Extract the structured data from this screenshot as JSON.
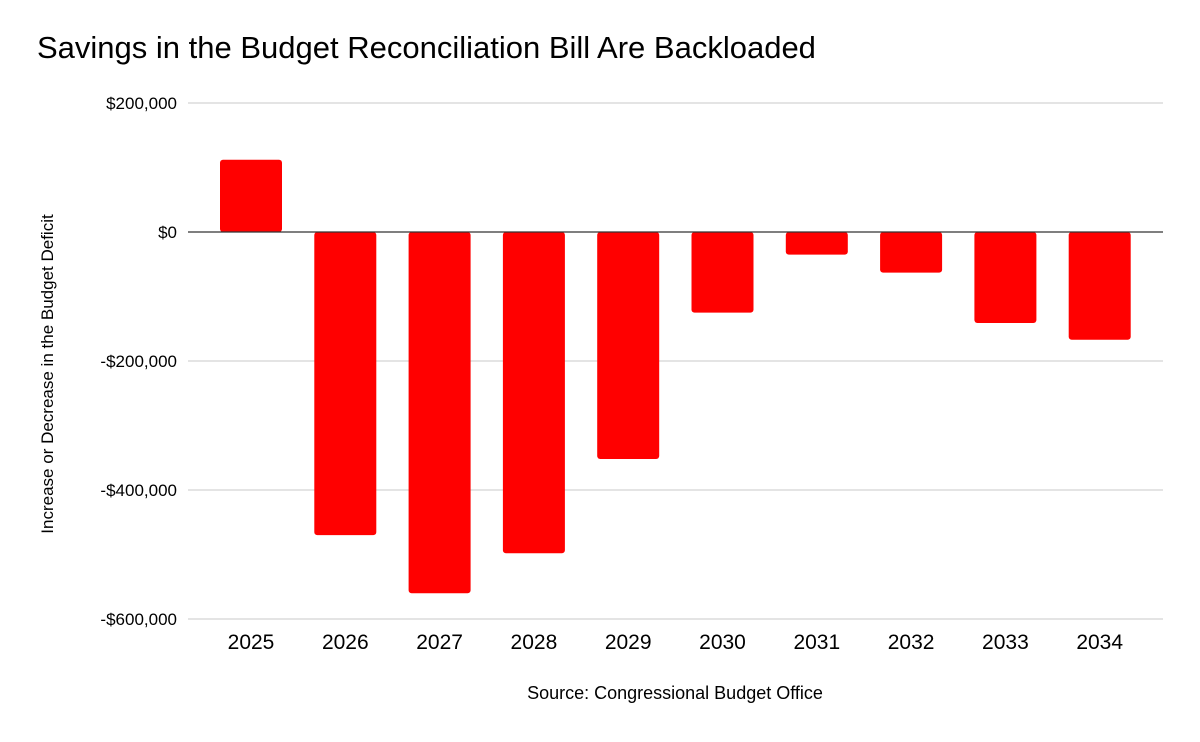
{
  "chart_data": {
    "type": "bar",
    "title": "Savings in the Budget Reconciliation Bill Are Backloaded",
    "ylabel": "Increase or Decrease in the Budget Deficit",
    "xlabel": "Source: Congressional Budget Office",
    "categories": [
      "2025",
      "2026",
      "2027",
      "2028",
      "2029",
      "2030",
      "2031",
      "2032",
      "2033",
      "2034"
    ],
    "values": [
      112000,
      -470000,
      -560000,
      -498000,
      -352000,
      -125000,
      -35000,
      -63000,
      -141000,
      -167000
    ],
    "ylim": [
      -600000,
      200000
    ],
    "yticks": [
      200000,
      0,
      -200000,
      -400000,
      -600000
    ],
    "ytick_labels": [
      "$200,000",
      "$0",
      "-$200,000",
      "-$400,000",
      "-$600,000"
    ],
    "grid": true,
    "legend": "none",
    "bar_color": "#ff0000"
  }
}
